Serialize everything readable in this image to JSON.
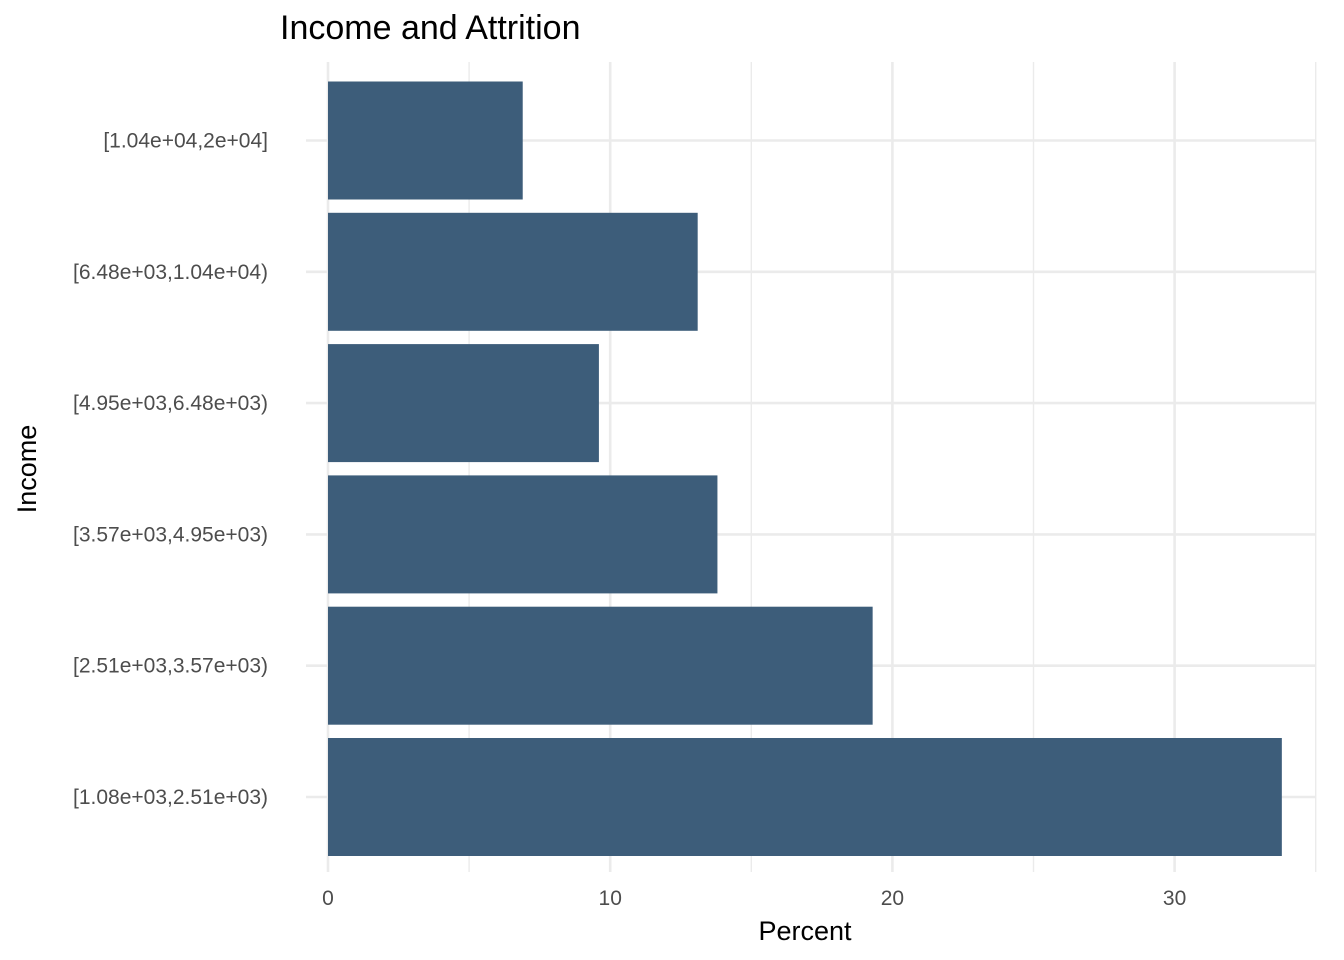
{
  "chart_data": {
    "type": "bar",
    "orientation": "horizontal",
    "title": "Income and Attrition",
    "xlabel": "Percent",
    "ylabel": "Income",
    "categories": [
      "[1.08e+03,2.51e+03)",
      "[2.51e+03,3.57e+03)",
      "[3.57e+03,4.95e+03)",
      "[4.95e+03,6.48e+03)",
      "[6.48e+03,1.04e+04)",
      "[1.04e+04,2e+04]"
    ],
    "values": [
      33.8,
      19.3,
      13.8,
      9.6,
      13.1,
      6.9
    ],
    "xlim": [
      0,
      35
    ],
    "xticks": [
      0,
      10,
      20,
      30
    ],
    "grid": true,
    "bar_color": "#3d5d7a"
  }
}
